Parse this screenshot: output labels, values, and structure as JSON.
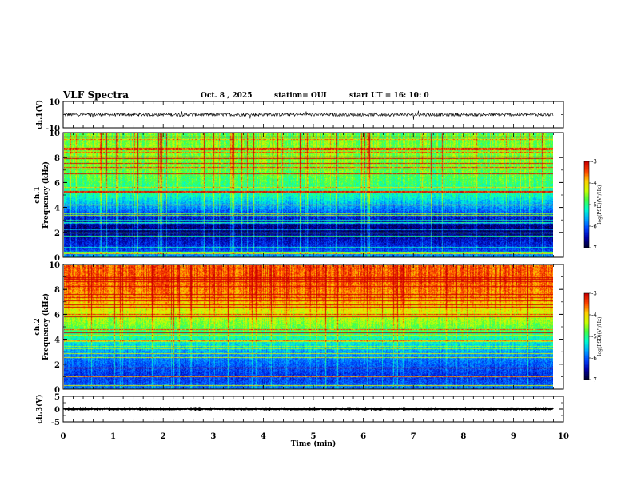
{
  "header": {
    "title": "VLF Spectra",
    "date": "Oct. 8 , 2025",
    "station": "station= OUI",
    "start": "start UT =  16: 10: 0"
  },
  "colors": {
    "colormap": [
      "#000033",
      "#0000aa",
      "#0044ff",
      "#00aaff",
      "#00ffcc",
      "#44ff44",
      "#ccff00",
      "#ffcc00",
      "#ff4400",
      "#cc0000"
    ],
    "trace": "#000000"
  },
  "chart_data": [
    {
      "type": "line",
      "panel": "ch1-waveform",
      "ylabel": "ch.1(V)",
      "ylim": [
        -10,
        10
      ],
      "yticks": [
        "10",
        "-10"
      ],
      "xlim": [
        0,
        10
      ],
      "level": 0,
      "amplitude": 1.2,
      "xmax_data": 9.8
    },
    {
      "type": "heatmap",
      "panel": "ch1-spectrogram",
      "ylabel": "ch.1 Frequency (kHz)",
      "ylim": [
        0,
        10
      ],
      "yticks": [
        "0",
        "2",
        "4",
        "6",
        "8",
        "10"
      ],
      "xlim": [
        0,
        10
      ],
      "xmax_data": 9.8,
      "colorbar": {
        "label": "log(PSD)(V²/Hz)",
        "range": [
          -7,
          -3
        ],
        "ticks": [
          "-3",
          "-4",
          "-5",
          "-6",
          "-7"
        ]
      },
      "profile": [
        {
          "f": 0.0,
          "v": -5.6
        },
        {
          "f": 0.4,
          "v": -6.0
        },
        {
          "f": 1.0,
          "v": -6.3
        },
        {
          "f": 1.6,
          "v": -6.5
        },
        {
          "f": 2.2,
          "v": -6.8
        },
        {
          "f": 2.8,
          "v": -6.6
        },
        {
          "f": 3.4,
          "v": -6.2
        },
        {
          "f": 4.0,
          "v": -5.8
        },
        {
          "f": 5.0,
          "v": -5.2
        },
        {
          "f": 6.0,
          "v": -4.9
        },
        {
          "f": 7.0,
          "v": -4.7
        },
        {
          "f": 8.0,
          "v": -4.6
        },
        {
          "f": 9.0,
          "v": -4.6
        },
        {
          "f": 10.0,
          "v": -4.7
        }
      ]
    },
    {
      "type": "heatmap",
      "panel": "ch2-spectrogram",
      "ylabel": "ch.2 Frequency (kHz)",
      "ylim": [
        0,
        10
      ],
      "yticks": [
        "0",
        "2",
        "4",
        "6",
        "8",
        "10"
      ],
      "xlim": [
        0,
        10
      ],
      "xmax_data": 9.8,
      "colorbar": {
        "label": "log(PSD)(V²/Hz)",
        "range": [
          -7,
          -3
        ],
        "ticks": [
          "-3",
          "-4",
          "-5",
          "-6",
          "-7"
        ]
      },
      "profile": [
        {
          "f": 0.0,
          "v": -5.8
        },
        {
          "f": 0.6,
          "v": -6.1
        },
        {
          "f": 1.2,
          "v": -6.2
        },
        {
          "f": 2.0,
          "v": -6.0
        },
        {
          "f": 3.0,
          "v": -5.7
        },
        {
          "f": 4.0,
          "v": -5.2
        },
        {
          "f": 5.0,
          "v": -4.7
        },
        {
          "f": 6.0,
          "v": -4.3
        },
        {
          "f": 7.0,
          "v": -3.9
        },
        {
          "f": 8.0,
          "v": -3.6
        },
        {
          "f": 9.0,
          "v": -3.5
        },
        {
          "f": 10.0,
          "v": -3.5
        }
      ]
    },
    {
      "type": "line",
      "panel": "ch3-waveform",
      "ylabel": "ch.3(V)",
      "ylim": [
        -5,
        5
      ],
      "yticks": [
        "5",
        "0",
        "-5"
      ],
      "xlim": [
        0,
        10
      ],
      "level": 0.1,
      "amplitude": 0.3,
      "xmax_data": 9.8,
      "xlabel": "Time (min)",
      "xticks": [
        "0",
        "1",
        "2",
        "3",
        "4",
        "5",
        "6",
        "7",
        "8",
        "9",
        "10"
      ]
    }
  ]
}
